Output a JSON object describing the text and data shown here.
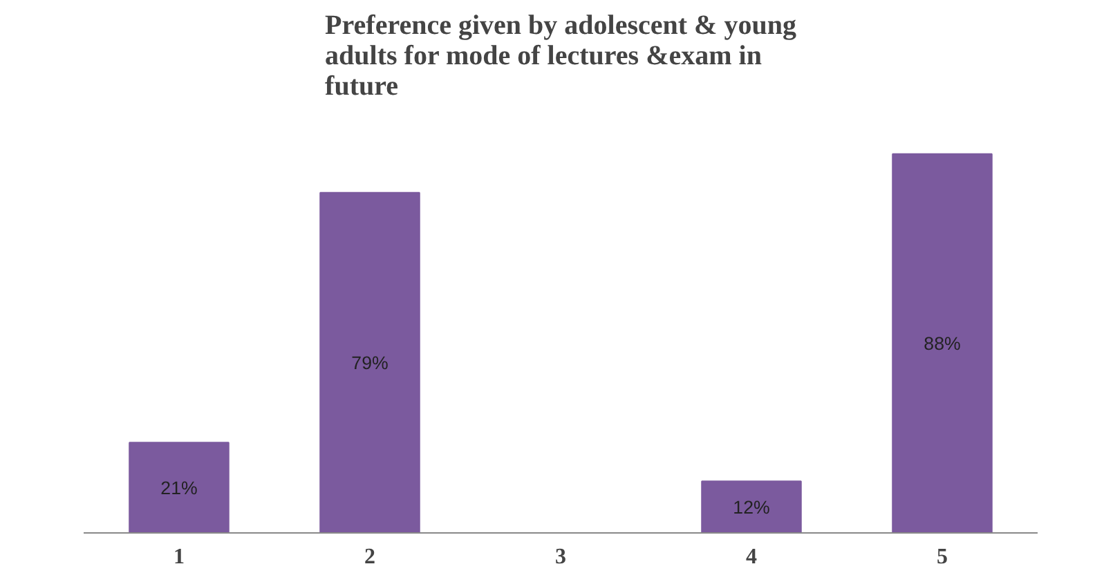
{
  "chart_data": {
    "type": "bar",
    "title": "Preference given by adolescent & young adults for mode of lectures &exam in future",
    "categories": [
      "1",
      "2",
      "3",
      "4",
      "5"
    ],
    "values": [
      21,
      79,
      null,
      12,
      88
    ],
    "value_labels": [
      "21%",
      "79%",
      null,
      "12%",
      "88%"
    ],
    "color": "#7b5a9e",
    "tick_labels": "x"
  }
}
